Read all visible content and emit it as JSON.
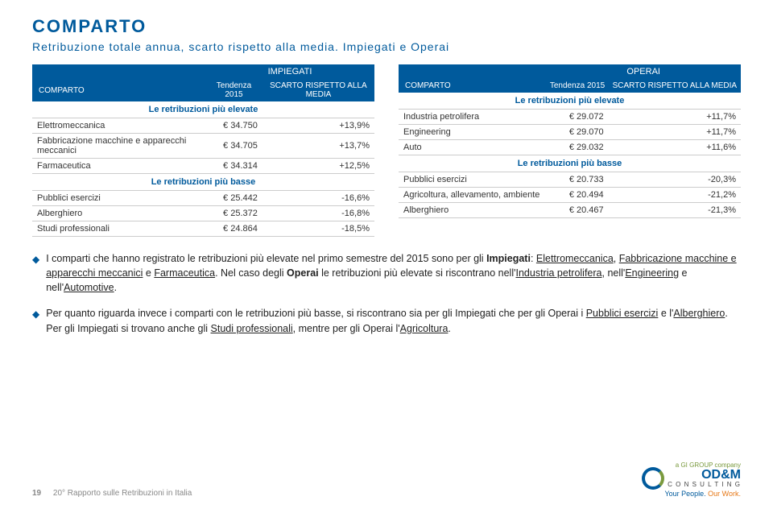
{
  "header": {
    "title": "COMPARTO",
    "subtitle": "Retribuzione totale annua, scarto rispetto alla media. Impiegati e Operai"
  },
  "tableLeft": {
    "groupLabel": "IMPIEGATI",
    "col1": "COMPARTO",
    "col2": "Tendenza 2015",
    "col3": "SCARTO RISPETTO ALLA MEDIA",
    "sectionHigh": "Le retribuzioni più elevate",
    "sectionLow": "Le retribuzioni più basse",
    "highRows": [
      {
        "label": "Elettromeccanica",
        "val": "€ 34.750",
        "pct": "+13,9%"
      },
      {
        "label": "Fabbricazione macchine e apparecchi meccanici",
        "val": "€ 34.705",
        "pct": "+13,7%"
      },
      {
        "label": "Farmaceutica",
        "val": "€ 34.314",
        "pct": "+12,5%"
      }
    ],
    "lowRows": [
      {
        "label": "Pubblici esercizi",
        "val": "€ 25.442",
        "pct": "-16,6%"
      },
      {
        "label": "Alberghiero",
        "val": "€ 25.372",
        "pct": "-16,8%"
      },
      {
        "label": "Studi professionali",
        "val": "€ 24.864",
        "pct": "-18,5%"
      }
    ]
  },
  "tableRight": {
    "groupLabel": "OPERAI",
    "col1": "COMPARTO",
    "col2": "Tendenza 2015",
    "col3": "SCARTO RISPETTO ALLA MEDIA",
    "sectionHigh": "Le retribuzioni più elevate",
    "sectionLow": "Le retribuzioni più basse",
    "highRows": [
      {
        "label": "Industria petrolifera",
        "val": "€ 29.072",
        "pct": "+11,7%"
      },
      {
        "label": "Engineering",
        "val": "€ 29.070",
        "pct": "+11,7%"
      },
      {
        "label": "Auto",
        "val": "€ 29.032",
        "pct": "+11,6%"
      }
    ],
    "lowRows": [
      {
        "label": "Pubblici esercizi",
        "val": "€ 20.733",
        "pct": "-20,3%"
      },
      {
        "label": "Agricoltura, allevamento, ambiente",
        "val": "€ 20.494",
        "pct": "-21,2%"
      },
      {
        "label": "Alberghiero",
        "val": "€ 20.467",
        "pct": "-21,3%"
      }
    ]
  },
  "bullets": {
    "b1_html": "I comparti che hanno registrato le retribuzioni più elevate nel primo semestre del 2015 sono per gli <b>Impiegati</b>: <u>Elettromeccanica</u>, <u>Fabbricazione macchine e apparecchi meccanici</u> e <u>Farmaceutica</u>. Nel caso degli <b>Operai</b> le retribuzioni più elevate si riscontrano nell'<u>Industria petrolifera</u>, nell'<u>Engineering</u> e nell'<u>Automotive</u>.",
    "b2_html": "Per quanto riguarda invece i comparti con le retribuzioni più basse, si riscontrano sia per gli Impiegati che per gli Operai i <u>Pubblici esercizi</u> e l'<u>Alberghiero</u>. Per gli Impiegati si trovano anche gli <u>Studi professionali</u>, mentre per gli Operai l'<u>Agricoltura</u>."
  },
  "footer": {
    "page": "19",
    "report": "20° Rapporto sulle Retribuzioni in Italia",
    "logoCompany": "a GI GROUP company",
    "logoMain": "OD&M",
    "logoSub": "C O N S U L T I N G",
    "logoTag1": "Your People.",
    "logoTag2": " Our Work."
  },
  "colors": {
    "brand": "#005a9c",
    "accentGreen": "#7a9a3e",
    "accentOrange": "#e67817"
  }
}
